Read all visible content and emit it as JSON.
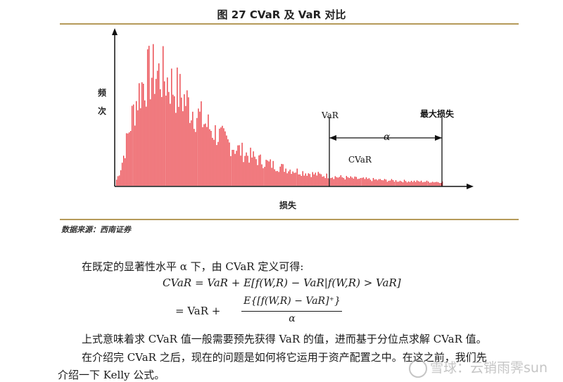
{
  "figure": {
    "title": "图 27   CVaR 及 VaR 对比",
    "source": "数据来源：西南证券"
  },
  "chart_data": {
    "type": "bar",
    "title": "图 27   CVaR 及 VaR 对比",
    "xlabel": "损失",
    "ylabel": "频次",
    "annotations": {
      "var_label": "VaR",
      "cvar_label": "CVaR",
      "max_loss_label": "最大损失",
      "alpha_label": "α"
    },
    "series_color": "#e8333a",
    "shape": "right-skewed loss frequency histogram; peak near 20% of loss axis, long right tail"
  },
  "body": {
    "line1": "在既定的显著性水平 α 下，由 CVaR 定义可得:",
    "eq1": "CVaR = VaR + E[f(W,R) − VaR|f(W,R) > VaR]",
    "eq2_lhs": "=   VaR +",
    "eq2_num": "E{[f(W,R) − VaR]⁺}",
    "eq2_den": "α",
    "line2": "上式意味着求 CVaR 值一般需要预先获得 VaR 的值，进而基于分位点求解 CVaR 值。",
    "line3": "在介绍完 CVaR 之后，现在的问题是如何将它运用于资产配置之中。在这之前，我们先",
    "line4": "介绍一下 Kelly 公式。"
  },
  "watermark": "雪球：云销雨霁sun"
}
